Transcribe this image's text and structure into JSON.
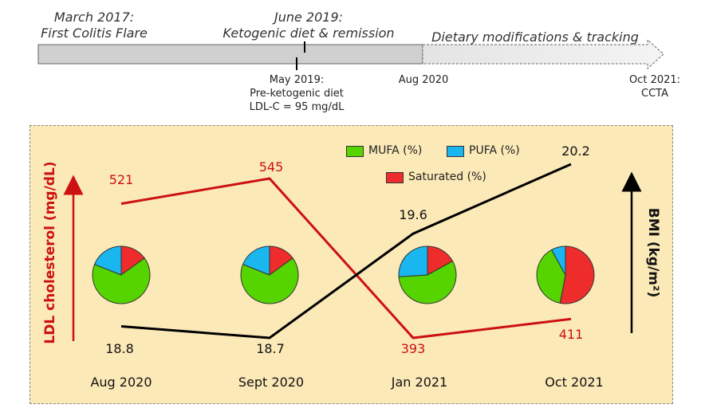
{
  "timeline": {
    "events": [
      {
        "label1": "March 2017:",
        "label2": "First Colitis Flare"
      },
      {
        "label1": "June 2019:",
        "label2": "Ketogenic diet & remission"
      },
      {
        "label1": "Dietary modifications & tracking"
      }
    ],
    "markers": [
      {
        "line1": "May 2019:",
        "line2": "Pre-ketogenic diet",
        "line3": "LDL-C = 95 mg/dL"
      },
      {
        "line1": "Aug 2020"
      },
      {
        "line1": "Oct 2021:",
        "line2": "CCTA"
      }
    ]
  },
  "colors": {
    "ldl": "#cc1111",
    "bmi": "#000000",
    "mufa": "#55d400",
    "pufa": "#19b6f0",
    "saturated": "#ee2c2c",
    "panel": "#fbe9b7",
    "timeline_bar": "#d0d0d0"
  },
  "legend": {
    "mufa": "MUFA (%)",
    "pufa": "PUFA (%)",
    "saturated": "Saturated (%)"
  },
  "axes": {
    "left_label": "LDL cholesterol (mg/dL)",
    "right_label": "BMI (kg/m²)"
  },
  "chart_data": {
    "type": "line",
    "categories": [
      "Aug 2020",
      "Sept 2020",
      "Jan 2021",
      "Oct 2021"
    ],
    "series": [
      {
        "name": "LDL cholesterol (mg/dL)",
        "values": [
          521,
          545,
          393,
          411
        ]
      },
      {
        "name": "BMI (kg/m²)",
        "values": [
          18.8,
          18.7,
          19.6,
          20.2
        ]
      }
    ],
    "pies": [
      {
        "category": "Aug 2020",
        "mufa": 66,
        "pufa": 19,
        "saturated": 15
      },
      {
        "category": "Sept 2020",
        "mufa": 66,
        "pufa": 19,
        "saturated": 15
      },
      {
        "category": "Jan 2021",
        "mufa": 57,
        "pufa": 26,
        "saturated": 17
      },
      {
        "category": "Oct 2021",
        "mufa": 39,
        "pufa": 8,
        "saturated": 53
      }
    ]
  }
}
